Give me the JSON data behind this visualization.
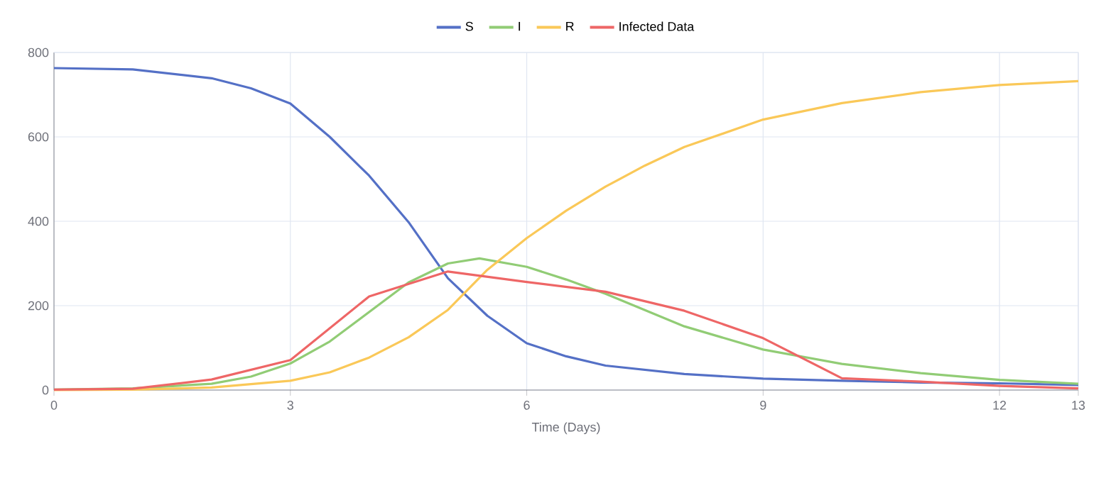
{
  "chart_data": {
    "type": "line",
    "xlabel": "Time (Days)",
    "xlim": [
      0,
      13
    ],
    "xticks": [
      0,
      3,
      6,
      9,
      12,
      13
    ],
    "ylim": [
      0,
      800
    ],
    "yticks": [
      0,
      200,
      400,
      600,
      800
    ],
    "grid": true,
    "legend": "top",
    "marker": "none",
    "line_style": "solid",
    "series": [
      {
        "name": "S",
        "color": "#5470c6",
        "x": [
          0,
          1,
          2,
          2.5,
          3,
          3.5,
          4,
          4.5,
          5,
          5.5,
          6,
          6.5,
          7,
          8,
          9,
          10,
          11,
          12,
          13
        ],
        "values": [
          763,
          760,
          739,
          715,
          679,
          600,
          508,
          398,
          265,
          176,
          111,
          80,
          58,
          38,
          27,
          22,
          18,
          16,
          12
        ]
      },
      {
        "name": "I",
        "color": "#91cc75",
        "x": [
          0,
          1,
          2,
          2.5,
          3,
          3.5,
          4,
          4.5,
          5,
          5.4,
          6,
          6.5,
          7,
          8,
          9,
          10,
          11,
          12,
          13
        ],
        "values": [
          1,
          4,
          15,
          32,
          63,
          115,
          185,
          255,
          300,
          312,
          292,
          262,
          228,
          151,
          96,
          62,
          40,
          24,
          15
        ]
      },
      {
        "name": "R",
        "color": "#fac858",
        "x": [
          0,
          1,
          2,
          3,
          3.5,
          4,
          4.5,
          5,
          5.5,
          6,
          6.5,
          7,
          7.5,
          8,
          9,
          10,
          11,
          12,
          13
        ],
        "values": [
          0,
          1,
          6,
          22,
          42,
          77,
          125,
          190,
          285,
          360,
          425,
          482,
          532,
          576,
          641,
          680,
          706,
          723,
          732
        ]
      },
      {
        "name": "Infected Data",
        "color": "#ee6666",
        "x": [
          0,
          1,
          2,
          3,
          4,
          5,
          6,
          7,
          8,
          9,
          10,
          11,
          12,
          13
        ],
        "values": [
          1,
          3,
          25,
          71,
          222,
          281,
          256,
          233,
          188,
          123,
          28,
          20,
          10,
          4
        ]
      }
    ]
  }
}
